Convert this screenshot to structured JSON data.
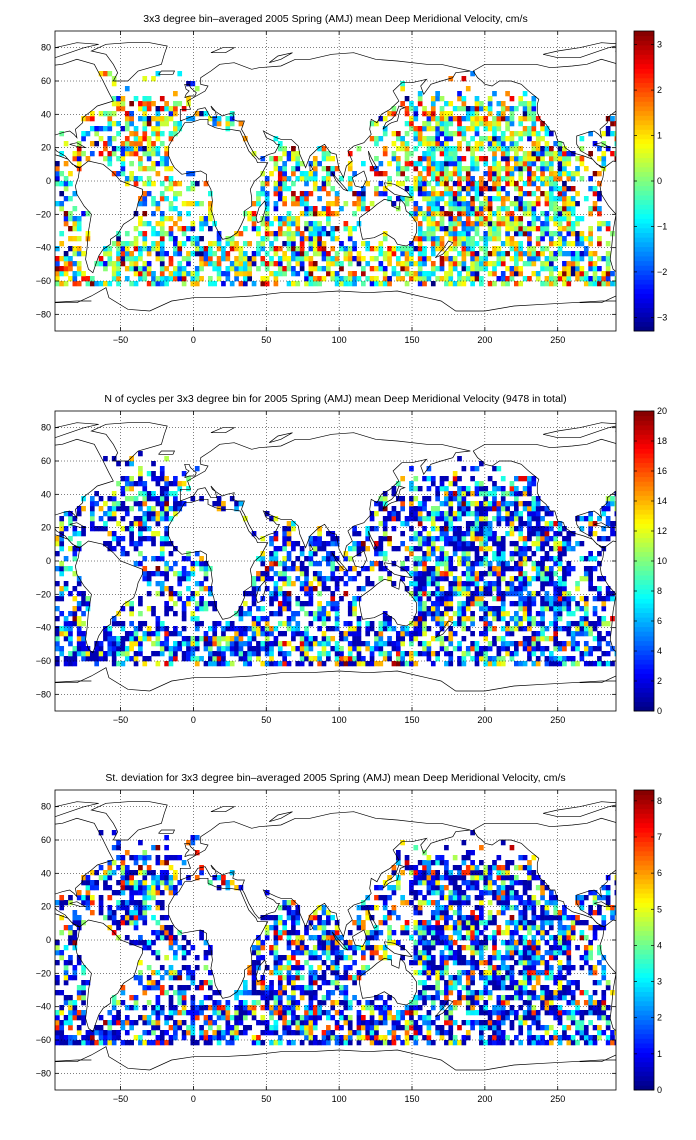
{
  "figure": {
    "panels": [
      {
        "title": "3x3 degree bin–averaged 2005 Spring (AMJ) mean Deep Meridional Velocity, cm/s",
        "colorbar": {
          "min": -3.3,
          "max": 3.3,
          "ticks": [
            -3,
            -2,
            -1,
            0,
            1,
            2,
            3
          ],
          "tick_labels": [
            "−3",
            "−2",
            "−1",
            "0",
            "1",
            "2",
            "3"
          ]
        },
        "field": "signed",
        "seed": 11
      },
      {
        "title": "N of cycles per 3x3 degree bin for 2005 Spring (AMJ) mean Deep Meridional Velocity (9478 in total)",
        "colorbar": {
          "min": 0,
          "max": 20,
          "ticks": [
            0,
            2,
            4,
            6,
            8,
            10,
            12,
            14,
            16,
            18,
            20
          ],
          "tick_labels": [
            "0",
            "2",
            "4",
            "6",
            "8",
            "10",
            "12",
            "14",
            "16",
            "18",
            "20"
          ]
        },
        "field": "count",
        "seed": 23
      },
      {
        "title": "St. deviation for 3x3 degree bin–averaged 2005 Spring (AMJ) mean Deep Meridional Velocity, cm/s",
        "colorbar": {
          "min": 0,
          "max": 8.3,
          "ticks": [
            0,
            1,
            2,
            3,
            4,
            5,
            6,
            7,
            8
          ],
          "tick_labels": [
            "0",
            "1",
            "2",
            "3",
            "4",
            "5",
            "6",
            "7",
            "8"
          ]
        },
        "field": "stdev",
        "seed": 37
      }
    ],
    "x_axis": {
      "min": -95,
      "max": 290,
      "ticks": [
        -50,
        0,
        50,
        100,
        150,
        200,
        250
      ],
      "tick_labels": [
        "−50",
        "0",
        "50",
        "100",
        "150",
        "200",
        "250"
      ]
    },
    "y_axis": {
      "min": -90,
      "max": 90,
      "ticks": [
        -80,
        -60,
        -40,
        -20,
        0,
        20,
        40,
        60,
        80
      ],
      "tick_labels": [
        "−80",
        "−60",
        "−40",
        "−20",
        "0",
        "20",
        "40",
        "60",
        "80"
      ]
    },
    "grid": true,
    "colormap": "jet",
    "bin_size_deg": 3
  }
}
